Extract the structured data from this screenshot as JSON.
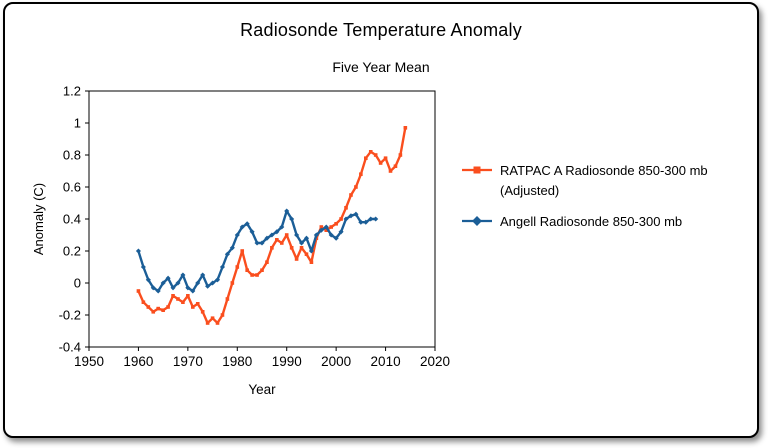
{
  "title": "Radiosonde Temperature Anomaly",
  "subtitle": "Five Year Mean",
  "chart_data": {
    "type": "line",
    "title": "Radiosonde Temperature Anomaly",
    "subtitle": "Five Year Mean",
    "xlabel": "Year",
    "ylabel": "Anomaly (C)",
    "xlim": [
      1950,
      2020
    ],
    "ylim": [
      -0.4,
      1.2
    ],
    "x_ticks": [
      "1950",
      "1960",
      "1970",
      "1980",
      "1990",
      "2000",
      "2010",
      "2020"
    ],
    "y_ticks": [
      "-0.4",
      "-0.2",
      "0",
      "0.2",
      "0.4",
      "0.6",
      "0.8",
      "1",
      "1.2"
    ],
    "grid": false,
    "legend_position": "right",
    "series": [
      {
        "name": "RATPAC A Radiosonde 850-300 mb (Adjusted)",
        "color": "#FA4E1E",
        "marker": "square",
        "x": [
          1960,
          1961,
          1962,
          1963,
          1964,
          1965,
          1966,
          1967,
          1968,
          1969,
          1970,
          1971,
          1972,
          1973,
          1974,
          1975,
          1976,
          1977,
          1978,
          1979,
          1980,
          1981,
          1982,
          1983,
          1984,
          1985,
          1986,
          1987,
          1988,
          1989,
          1990,
          1991,
          1992,
          1993,
          1994,
          1995,
          1996,
          1997,
          1998,
          1999,
          2000,
          2001,
          2002,
          2003,
          2004,
          2005,
          2006,
          2007,
          2008,
          2009,
          2010,
          2011,
          2012,
          2013,
          2014
        ],
        "y": [
          -0.05,
          -0.12,
          -0.15,
          -0.18,
          -0.16,
          -0.17,
          -0.15,
          -0.08,
          -0.1,
          -0.12,
          -0.08,
          -0.15,
          -0.13,
          -0.18,
          -0.25,
          -0.22,
          -0.25,
          -0.2,
          -0.1,
          0.0,
          0.1,
          0.2,
          0.08,
          0.05,
          0.05,
          0.08,
          0.13,
          0.22,
          0.27,
          0.25,
          0.3,
          0.22,
          0.15,
          0.22,
          0.18,
          0.13,
          0.28,
          0.35,
          0.33,
          0.35,
          0.37,
          0.4,
          0.47,
          0.55,
          0.6,
          0.68,
          0.78,
          0.82,
          0.8,
          0.75,
          0.78,
          0.7,
          0.73,
          0.8,
          0.97
        ]
      },
      {
        "name": "Angell Radiosonde 850-300 mb",
        "color": "#1B5E97",
        "marker": "diamond",
        "x": [
          1960,
          1961,
          1962,
          1963,
          1964,
          1965,
          1966,
          1967,
          1968,
          1969,
          1970,
          1971,
          1972,
          1973,
          1974,
          1975,
          1976,
          1977,
          1978,
          1979,
          1980,
          1981,
          1982,
          1983,
          1984,
          1985,
          1986,
          1987,
          1988,
          1989,
          1990,
          1991,
          1992,
          1993,
          1994,
          1995,
          1996,
          1997,
          1998,
          1999,
          2000,
          2001,
          2002,
          2003,
          2004,
          2005,
          2006,
          2007,
          2008
        ],
        "y": [
          0.2,
          0.1,
          0.02,
          -0.03,
          -0.05,
          0.0,
          0.03,
          -0.03,
          0.0,
          0.05,
          -0.03,
          -0.05,
          0.0,
          0.05,
          -0.02,
          0.0,
          0.02,
          0.1,
          0.18,
          0.22,
          0.3,
          0.35,
          0.37,
          0.32,
          0.25,
          0.25,
          0.28,
          0.3,
          0.32,
          0.35,
          0.45,
          0.4,
          0.3,
          0.25,
          0.28,
          0.2,
          0.3,
          0.33,
          0.35,
          0.3,
          0.28,
          0.32,
          0.4,
          0.42,
          0.43,
          0.38,
          0.38,
          0.4,
          0.4
        ]
      }
    ]
  }
}
